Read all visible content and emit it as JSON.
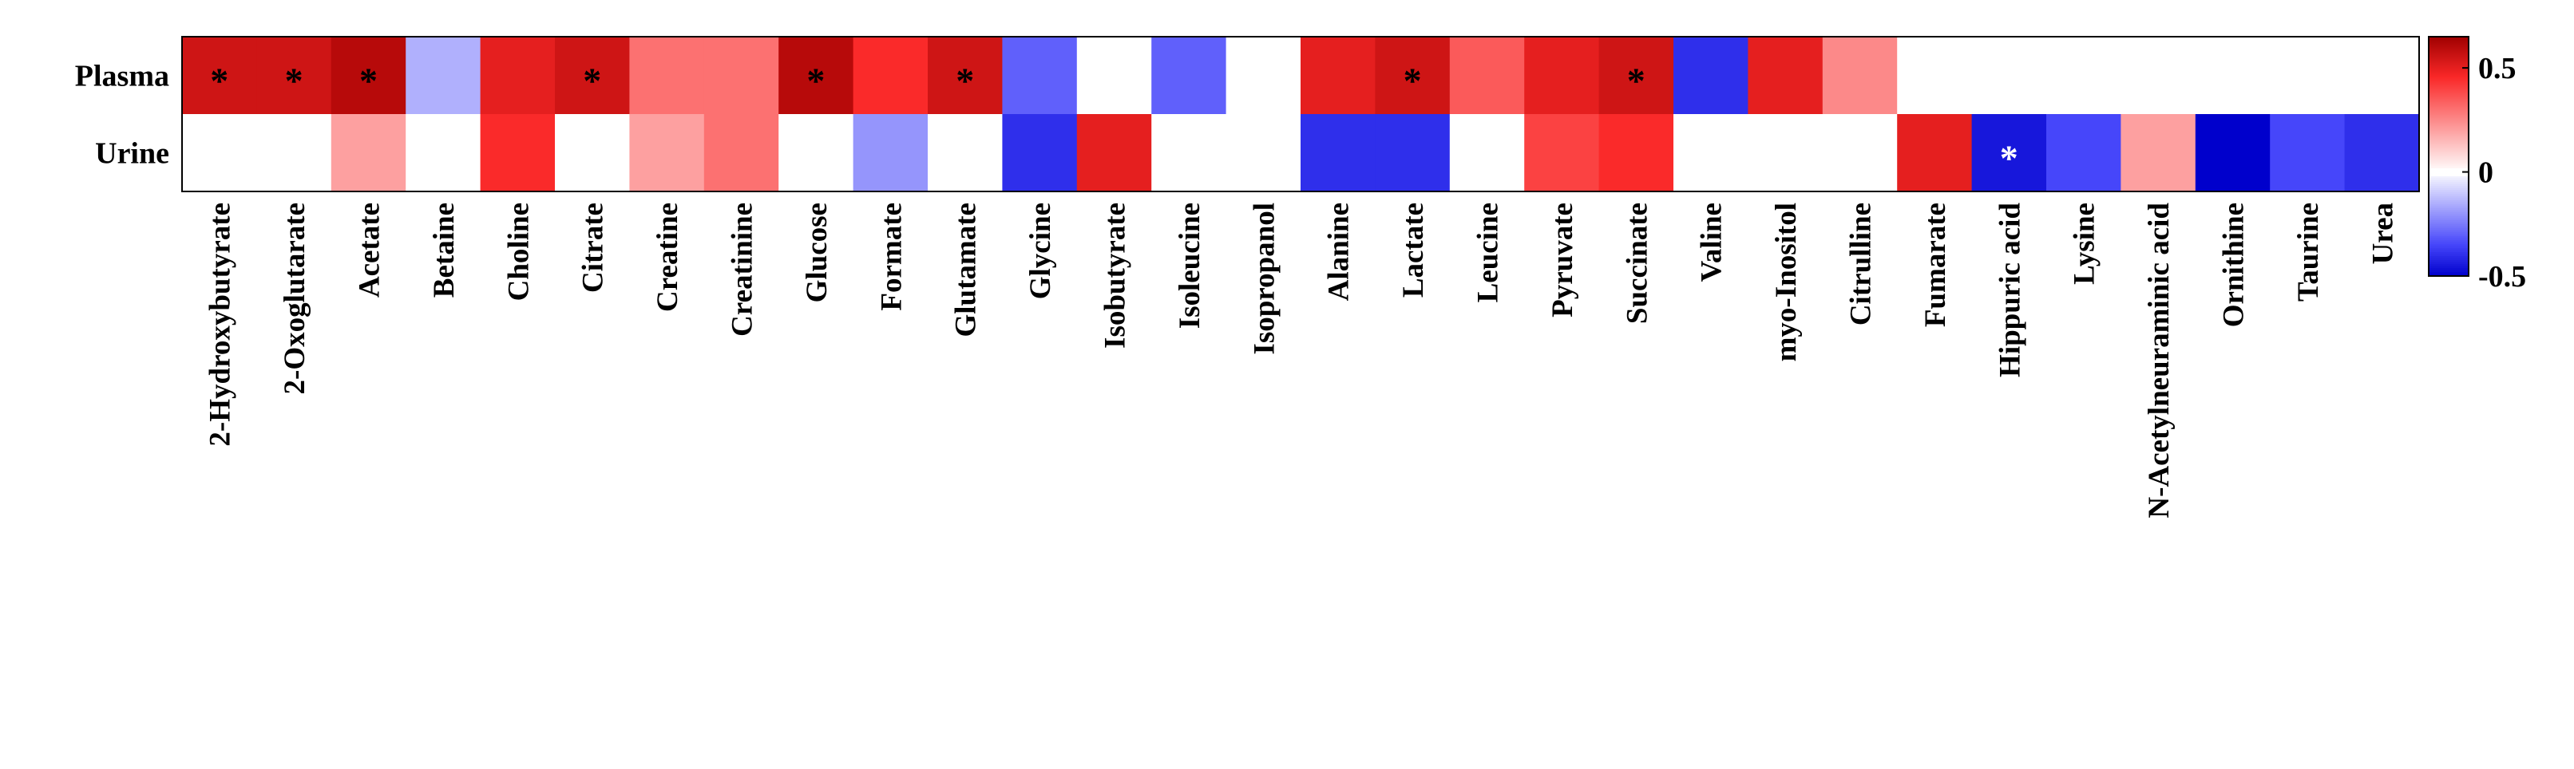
{
  "chart_data": {
    "type": "heatmap",
    "title": "",
    "xlabel": "",
    "ylabel": "",
    "rows": [
      "Plasma",
      "Urine"
    ],
    "columns": [
      "2-Hydroxybutyrate",
      "2-Oxoglutarate",
      "Acetate",
      "Betaine",
      "Choline",
      "Citrate",
      "Creatine",
      "Creatinine",
      "Glucose",
      "Formate",
      "Glutamate",
      "Glycine",
      "Isobutyrate",
      "Isoleucine",
      "Isopropanol",
      "Alanine",
      "Lactate",
      "Leucine",
      "Pyruvate",
      "Succinate",
      "Valine",
      "myo-Inositol",
      "Citrulline",
      "Fumarate",
      "Hippuric acid",
      "Lysine",
      "N-Acetylneuraminic acid",
      "Ornithine",
      "Taurine",
      "Urea"
    ],
    "values": [
      [
        0.55,
        0.55,
        0.6,
        -0.15,
        0.5,
        0.55,
        0.3,
        0.3,
        0.6,
        0.45,
        0.55,
        -0.3,
        0,
        -0.3,
        0,
        0.5,
        0.55,
        0.35,
        0.5,
        0.55,
        -0.4,
        0.5,
        0.25,
        0,
        0,
        0,
        0,
        0,
        0,
        0
      ],
      [
        0,
        0,
        0.2,
        0,
        0.45,
        0,
        0.2,
        0.3,
        0,
        -0.2,
        0,
        -0.4,
        0.5,
        0,
        0,
        -0.4,
        -0.4,
        0,
        0.4,
        0.45,
        0,
        0,
        0,
        0.5,
        -0.45,
        -0.35,
        0.2,
        -0.5,
        -0.35,
        -0.4
      ]
    ],
    "significance": [
      [
        "*",
        "*",
        "*",
        "",
        "",
        "*",
        "",
        "",
        "*",
        "",
        "*",
        "",
        "",
        "",
        "",
        "",
        "*",
        "",
        "",
        "*",
        "",
        "",
        "",
        "",
        "",
        "",
        "",
        "",
        "",
        ""
      ],
      [
        "",
        "",
        "",
        "",
        "",
        "",
        "",
        "",
        "",
        "",
        "",
        "",
        "",
        "",
        "",
        "",
        "",
        "",
        "",
        "",
        "",
        "",
        "",
        "",
        "*",
        "",
        "",
        "",
        "",
        ""
      ]
    ],
    "colorbar": {
      "range": [
        -0.5,
        0.65
      ],
      "tick_values": [
        0.5,
        0,
        -0.5
      ],
      "tick_labels": [
        "0.5",
        "0",
        "-0.5"
      ]
    },
    "colors": {
      "neg_max": "#0000cc",
      "pos_max": "#a00000",
      "zero": "#ffffff",
      "star_dark": "#000000",
      "star_light": "#ffffff"
    },
    "grid": false
  }
}
